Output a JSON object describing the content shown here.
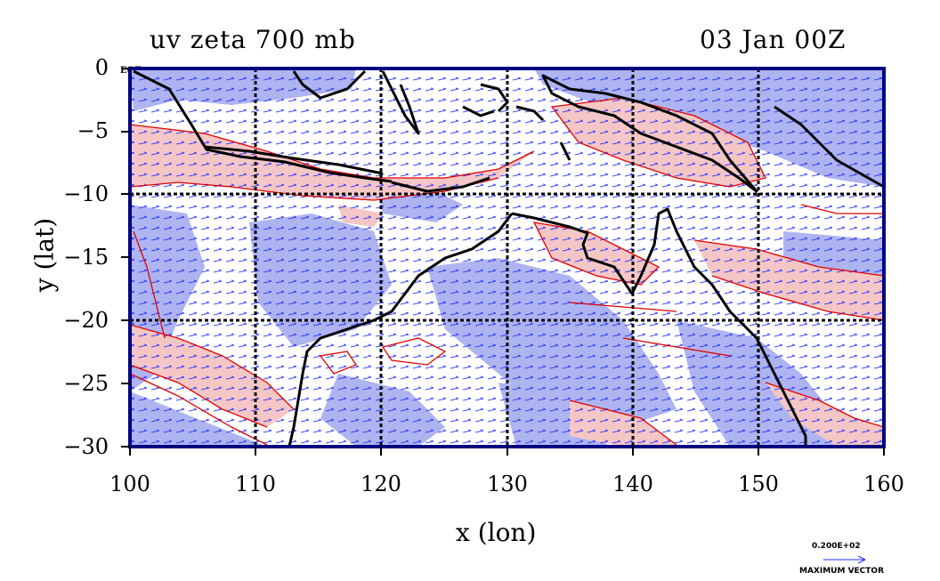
{
  "plot": {
    "title": "uv zeta 700 mb",
    "time": "03 Jan 00Z",
    "xlabel": "x (lon)",
    "ylabel": "y (lat)",
    "tag": "EOF",
    "vector_value": "0.200E+02",
    "vector_label": "MAXIMUM VECTOR"
  },
  "map": {
    "lon_range": [
      100,
      160
    ],
    "lat_range": [
      -30,
      0
    ],
    "x_ticks": [
      "100",
      "110",
      "120",
      "130",
      "140",
      "150",
      "160"
    ],
    "y_ticks": [
      "0",
      "−5",
      "−10",
      "−15",
      "−20",
      "−25",
      "−30"
    ],
    "grid_lons": [
      110,
      120,
      130,
      140,
      150
    ],
    "grid_lats": [
      -10,
      -20
    ],
    "colors": {
      "negative_fill": "#aab0f0",
      "positive_fill": "#f5c6c6",
      "positive_contour": "#e00000",
      "vectors": "#1f2cff",
      "coastline": "#000000",
      "frame": "#000080"
    }
  }
}
